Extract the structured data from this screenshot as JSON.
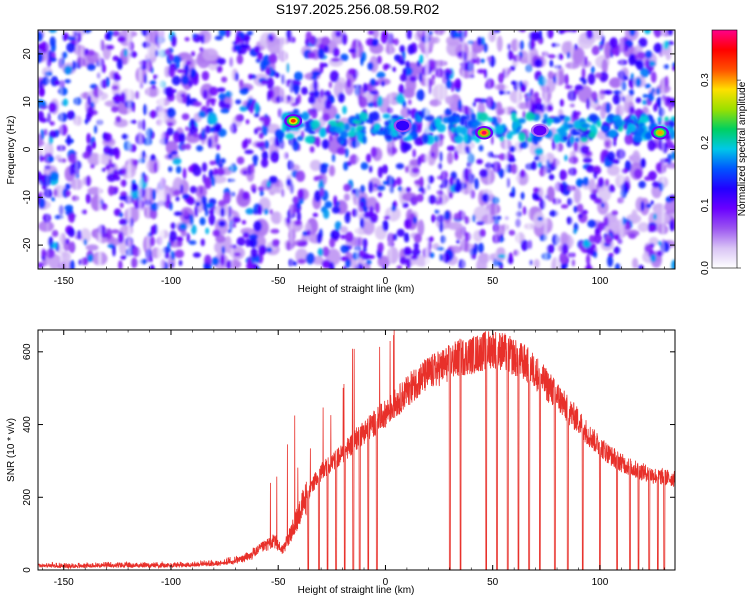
{
  "title": "S197.2025.256.08.59.R02",
  "colors": {
    "snr_line": "#e8302a",
    "background": "#ffffff",
    "axis": "#000000",
    "colormap": [
      "#ffffff",
      "#d9c4f5",
      "#9b55f0",
      "#6a00ff",
      "#2200ff",
      "#0055ff",
      "#00c8e8",
      "#00d060",
      "#9be000",
      "#ffe000",
      "#ff5000",
      "#ff0000",
      "#ff008a"
    ]
  },
  "chart_data": [
    {
      "type": "heatmap",
      "title": "S197.2025.256.08.59.R02",
      "xlabel": "Height of straight line (km)",
      "ylabel": "Frequency (Hz)",
      "xlim": [
        -162,
        135
      ],
      "ylim": [
        -25,
        25
      ],
      "xticks": [
        -150,
        -100,
        -50,
        0,
        50,
        100
      ],
      "yticks": [
        -20,
        -10,
        0,
        10,
        20
      ],
      "colorbar": {
        "label": "Normalized spectral amplitude",
        "range": [
          0.0,
          0.38
        ],
        "ticks": [
          "0.0",
          "0.1",
          "0.2",
          "0.3"
        ]
      },
      "hotspots": [
        {
          "x": -43,
          "y": 6,
          "value": 0.33
        },
        {
          "x": 46,
          "y": 3.5,
          "value": 0.37
        },
        {
          "x": 128,
          "y": 3.5,
          "value": 0.3
        },
        {
          "x": 8,
          "y": 5,
          "value": 0.12
        },
        {
          "x": 72,
          "y": 4,
          "value": 0.1
        }
      ],
      "signal_band_hz": [
        2,
        7
      ]
    },
    {
      "type": "line",
      "xlabel": "Height of straight line (km)",
      "ylabel": "SNR (10 * v/v)",
      "xlim": [
        -162,
        135
      ],
      "ylim": [
        0,
        660
      ],
      "xticks": [
        -150,
        -100,
        -50,
        0,
        50,
        100
      ],
      "yticks": [
        0,
        200,
        400,
        600
      ],
      "series": [
        {
          "x": [
            -162,
            -150,
            -130,
            -110,
            -90,
            -75,
            -65,
            -58,
            -52,
            -48,
            -44,
            -40,
            -36,
            -32,
            -28,
            -24,
            -20,
            -16,
            -12,
            -8,
            -4,
            0,
            5,
            10,
            15,
            20,
            25,
            30,
            35,
            40,
            45,
            50,
            55,
            60,
            65,
            70,
            75,
            80,
            85,
            90,
            95,
            100,
            105,
            110,
            115,
            120,
            125,
            130,
            135
          ],
          "values": [
            12,
            10,
            12,
            12,
            14,
            20,
            35,
            60,
            80,
            55,
            100,
            160,
            210,
            255,
            280,
            300,
            320,
            345,
            370,
            390,
            410,
            430,
            460,
            490,
            520,
            540,
            555,
            570,
            585,
            590,
            600,
            610,
            600,
            585,
            570,
            545,
            510,
            480,
            440,
            410,
            370,
            340,
            315,
            295,
            280,
            270,
            260,
            255,
            250
          ],
          "dropouts_km": [
            -36,
            -31,
            -27,
            -23,
            -19,
            -15,
            -12,
            -8,
            -4,
            30,
            35,
            47,
            52,
            57,
            62,
            67,
            72,
            79,
            85,
            92,
            100,
            108,
            114,
            118,
            123,
            127,
            130
          ]
        }
      ]
    }
  ]
}
